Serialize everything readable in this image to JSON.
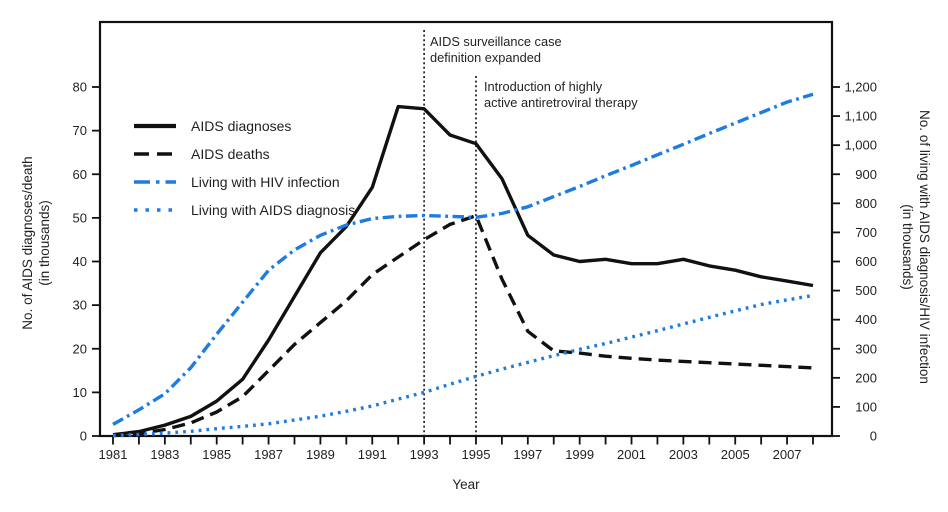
{
  "figure": {
    "xlabel": "Year",
    "ylabel_left_line1": "No. of AIDS diagnoses/death",
    "ylabel_left_line2": "(in thousands)",
    "ylabel_right_line1": "No. of living with AIDS diagnosis/HIV infection",
    "ylabel_right_line2": "(in thousands)",
    "ann1_line1": "AIDS surveillance case",
    "ann1_line2": "definition expanded",
    "ann2_line1": "Introduction of highly",
    "ann2_line2": "active antiretroviral therapy"
  },
  "colors": {
    "black_series": "#111111",
    "blue_series": "#1d7ce2",
    "text": "#231f20",
    "axis": "#111111"
  },
  "chart_data": {
    "type": "line",
    "x": [
      1981,
      1982,
      1983,
      1984,
      1985,
      1986,
      1987,
      1988,
      1989,
      1990,
      1991,
      1992,
      1993,
      1994,
      1995,
      1996,
      1997,
      1998,
      1999,
      2000,
      2001,
      2002,
      2003,
      2004,
      2005,
      2006,
      2007,
      2008
    ],
    "x_tick_labels": [
      1981,
      1983,
      1985,
      1987,
      1989,
      1991,
      1993,
      1995,
      1997,
      1999,
      2001,
      2003,
      2005,
      2007
    ],
    "xlabel": "Year",
    "left_axis": {
      "label": "No. of AIDS diagnoses/death (in thousands)",
      "min": 0,
      "max": 80,
      "ticks": [
        0,
        10,
        20,
        30,
        40,
        50,
        60,
        70,
        80
      ]
    },
    "right_axis": {
      "label": "No. of living with AIDS diagnosis/HIV infection (in thousands)",
      "min": 0,
      "max": 1200,
      "ticks": [
        0,
        100,
        200,
        300,
        400,
        500,
        600,
        700,
        800,
        900,
        1000,
        1100,
        1200
      ]
    },
    "grid": false,
    "legend_position": "upper-left-inside",
    "series": [
      {
        "name": "AIDS diagnoses",
        "axis": "left",
        "style": "solid",
        "color": "#111111",
        "values": [
          0.3,
          1,
          2.5,
          4.5,
          8,
          13,
          22,
          32,
          42,
          48,
          57,
          75.5,
          75,
          69,
          67,
          59,
          46,
          41.5,
          40,
          40.5,
          39.5,
          39.5,
          40.5,
          39,
          38,
          36.5,
          35.5,
          34.5
        ]
      },
      {
        "name": "AIDS deaths",
        "axis": "left",
        "style": "dashed",
        "color": "#111111",
        "values": [
          0.1,
          0.5,
          1.5,
          3,
          5.5,
          9,
          15,
          21,
          26,
          31,
          37,
          41,
          45,
          48.5,
          50.5,
          36,
          24,
          19.5,
          19,
          18.3,
          17.8,
          17.4,
          17.1,
          16.8,
          16.5,
          16.2,
          15.9,
          15.6
        ]
      },
      {
        "name": "Living with HIV infection",
        "axis": "right",
        "style": "dashdot",
        "color": "#1d7ce2",
        "values": [
          40,
          90,
          145,
          235,
          350,
          460,
          570,
          640,
          690,
          725,
          748,
          755,
          758,
          755,
          752,
          765,
          788,
          823,
          858,
          895,
          930,
          967,
          1003,
          1040,
          1076,
          1112,
          1148,
          1175
        ]
      },
      {
        "name": "Living with AIDS diagnosis",
        "axis": "right",
        "style": "dotted",
        "color": "#1d7ce2",
        "values": [
          2,
          5,
          10,
          16,
          25,
          33,
          42,
          55,
          68,
          85,
          103,
          127,
          150,
          178,
          205,
          230,
          253,
          276,
          298,
          318,
          340,
          362,
          385,
          408,
          430,
          452,
          468,
          483
        ]
      }
    ],
    "reference_lines": [
      {
        "x": 1993,
        "label": "AIDS surveillance case definition expanded"
      },
      {
        "x": 1995,
        "label": "Introduction of highly active antiretroviral therapy"
      }
    ]
  }
}
